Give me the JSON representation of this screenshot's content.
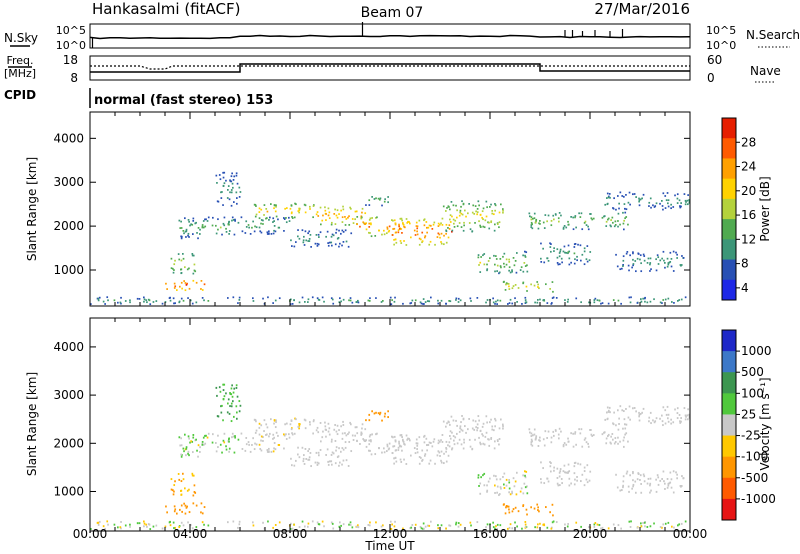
{
  "header": {
    "station": "Hankasalmi (fitACF)",
    "beam": "Beam 07",
    "date": "27/Mar/2016"
  },
  "noise_panel": {
    "left_label": "N.Sky",
    "left_ticks": [
      "10^5",
      "10^0"
    ],
    "right_ticks": [
      "10^5",
      "10^0"
    ],
    "right_label": "N.Search"
  },
  "freq_panel": {
    "left_label_1": "Freq.",
    "left_label_2": "[MHz]",
    "left_ticks": [
      "18",
      "8"
    ],
    "right_ticks": [
      "60",
      "0"
    ],
    "right_label": "Nave"
  },
  "cpid": {
    "label": "CPID",
    "value": "normal (fast stereo) 153"
  },
  "colors": {
    "power": [
      "#1e28e6",
      "#2850b4",
      "#3c9678",
      "#50aa50",
      "#b4d23c",
      "#ffd200",
      "#ffa000",
      "#ff5a00",
      "#e61e00"
    ],
    "velocity": [
      "#e61414",
      "#ff5a00",
      "#ff9600",
      "#ffc800",
      "#c8c8c8",
      "#50c83c",
      "#3c9650",
      "#3c78c8",
      "#1e28c8"
    ]
  },
  "chart_data": [
    {
      "type": "heatmap",
      "quantity": "power",
      "ylabel": "Slant Range [km]",
      "ylim": [
        180,
        4600
      ],
      "yticks": [
        1000,
        2000,
        3000,
        4000
      ],
      "xlim": [
        0,
        24
      ],
      "colorbar_label": "Power [dB]",
      "colorbar_ticks": [
        "28",
        "24",
        "20",
        "16",
        "12",
        "8",
        "4"
      ],
      "colorbar_range": [
        0,
        30
      ]
    },
    {
      "type": "heatmap",
      "quantity": "velocity",
      "ylabel": "Slant Range [km]",
      "ylim": [
        180,
        4600
      ],
      "yticks": [
        1000,
        2000,
        3000,
        4000
      ],
      "xlim": [
        0,
        24
      ],
      "xticks": [
        "00:00",
        "04:00",
        "08:00",
        "12:00",
        "16:00",
        "20:00",
        "00:00"
      ],
      "xlabel": "Time UT",
      "colorbar_label": "Velocity [m s⁻¹]",
      "colorbar_ticks": [
        "1000",
        "500",
        "100",
        "25",
        "-25",
        "-100",
        "-500",
        "-1000"
      ]
    }
  ],
  "echoes": [
    {
      "t": [
        3.0,
        4.6
      ],
      "r": [
        520,
        760
      ],
      "p": [
        18,
        28
      ],
      "v": [
        -250,
        -120
      ]
    },
    {
      "t": [
        3.2,
        4.2
      ],
      "r": [
        880,
        1350
      ],
      "p": [
        8,
        18
      ],
      "v": [
        -180,
        -50
      ]
    },
    {
      "t": [
        3.5,
        6.0
      ],
      "r": [
        1700,
        2200
      ],
      "p": [
        4,
        14
      ],
      "v": [
        -30,
        60
      ]
    },
    {
      "t": [
        5.0,
        6.0
      ],
      "r": [
        2400,
        3200
      ],
      "p": [
        4,
        10
      ],
      "v": [
        30,
        150
      ]
    },
    {
      "t": [
        6.0,
        8.0
      ],
      "r": [
        1800,
        2200
      ],
      "p": [
        4,
        14
      ],
      "v": [
        -30,
        20
      ]
    },
    {
      "t": [
        6.5,
        9.0
      ],
      "r": [
        2150,
        2500
      ],
      "p": [
        10,
        22
      ],
      "v": [
        -30,
        20
      ]
    },
    {
      "t": [
        9.0,
        11.0
      ],
      "r": [
        2000,
        2450
      ],
      "p": [
        12,
        24
      ],
      "v": [
        -25,
        25
      ]
    },
    {
      "t": [
        8.0,
        10.5
      ],
      "r": [
        1500,
        1900
      ],
      "p": [
        4,
        10
      ],
      "v": [
        -20,
        20
      ]
    },
    {
      "t": [
        10.5,
        12.5
      ],
      "r": [
        1750,
        2200
      ],
      "p": [
        12,
        26
      ],
      "v": [
        -25,
        25
      ]
    },
    {
      "t": [
        12.0,
        14.5
      ],
      "r": [
        1550,
        2150
      ],
      "p": [
        14,
        28
      ],
      "v": [
        -25,
        25
      ]
    },
    {
      "t": [
        14.0,
        16.5
      ],
      "r": [
        1850,
        2550
      ],
      "p": [
        8,
        20
      ],
      "v": [
        -25,
        25
      ]
    },
    {
      "t": [
        11.0,
        12.0
      ],
      "r": [
        2450,
        2700
      ],
      "p": [
        4,
        14
      ],
      "v": [
        -300,
        -100
      ]
    },
    {
      "t": [
        15.5,
        17.5
      ],
      "r": [
        900,
        1400
      ],
      "p": [
        6,
        18
      ],
      "v": [
        -40,
        40
      ]
    },
    {
      "t": [
        16.5,
        18.5
      ],
      "r": [
        480,
        720
      ],
      "p": [
        10,
        20
      ],
      "v": [
        -300,
        -150
      ]
    },
    {
      "t": [
        17.5,
        21.5
      ],
      "r": [
        1900,
        2300
      ],
      "p": [
        6,
        16
      ],
      "v": [
        -25,
        25
      ]
    },
    {
      "t": [
        18.0,
        20.0
      ],
      "r": [
        1100,
        1600
      ],
      "p": [
        4,
        12
      ],
      "v": [
        -25,
        25
      ]
    },
    {
      "t": [
        20.5,
        24.0
      ],
      "r": [
        2350,
        2750
      ],
      "p": [
        4,
        10
      ],
      "v": [
        -25,
        25
      ]
    },
    {
      "t": [
        21.0,
        23.8
      ],
      "r": [
        950,
        1400
      ],
      "p": [
        4,
        10
      ],
      "v": [
        -25,
        25
      ]
    },
    {
      "t": [
        0.0,
        24.0
      ],
      "r": [
        200,
        360
      ],
      "p": [
        4,
        12
      ],
      "v": [
        -60,
        80
      ]
    }
  ]
}
